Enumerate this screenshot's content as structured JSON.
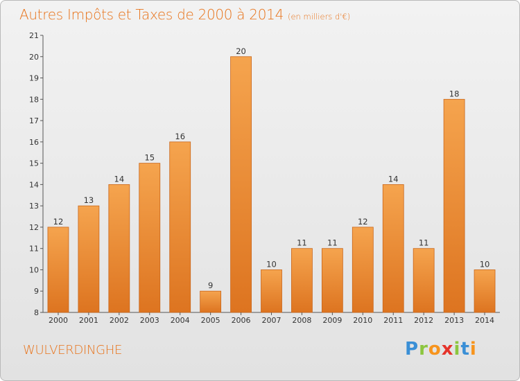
{
  "title": "Autres Impôts et Taxes de 2000 à 2014",
  "unit_note": "(en milliers d'€)",
  "commune": "WULVERDINGHE",
  "logo": {
    "letters": [
      "P",
      "r",
      "o",
      "x",
      "i",
      "t",
      "i"
    ],
    "colors": [
      "#3a8fd6",
      "#8cc63f",
      "#f7941d",
      "#e5332a",
      "#8cc63f",
      "#3a8fd6",
      "#f7941d"
    ]
  },
  "colors": {
    "accent": "#e8731a",
    "bar_top": "#f5a44e",
    "bar_bottom": "#dd7420",
    "bar_edge": "#c9661b"
  },
  "chart_data": {
    "type": "bar",
    "title": "Autres Impôts et Taxes de 2000 à 2014",
    "subtitle": "(en milliers d'€)",
    "categories": [
      "2000",
      "2001",
      "2002",
      "2003",
      "2004",
      "2005",
      "2006",
      "2007",
      "2008",
      "2009",
      "2010",
      "2011",
      "2012",
      "2013",
      "2014"
    ],
    "values": [
      12,
      13,
      14,
      15,
      16,
      9,
      20,
      10,
      11,
      11,
      12,
      14,
      11,
      18,
      10
    ],
    "ylim": [
      8,
      21
    ],
    "yticks": [
      8,
      9,
      10,
      11,
      12,
      13,
      14,
      15,
      16,
      17,
      18,
      19,
      20,
      21
    ],
    "xlabel": "",
    "ylabel": "",
    "grid": false,
    "data_labels": true
  }
}
